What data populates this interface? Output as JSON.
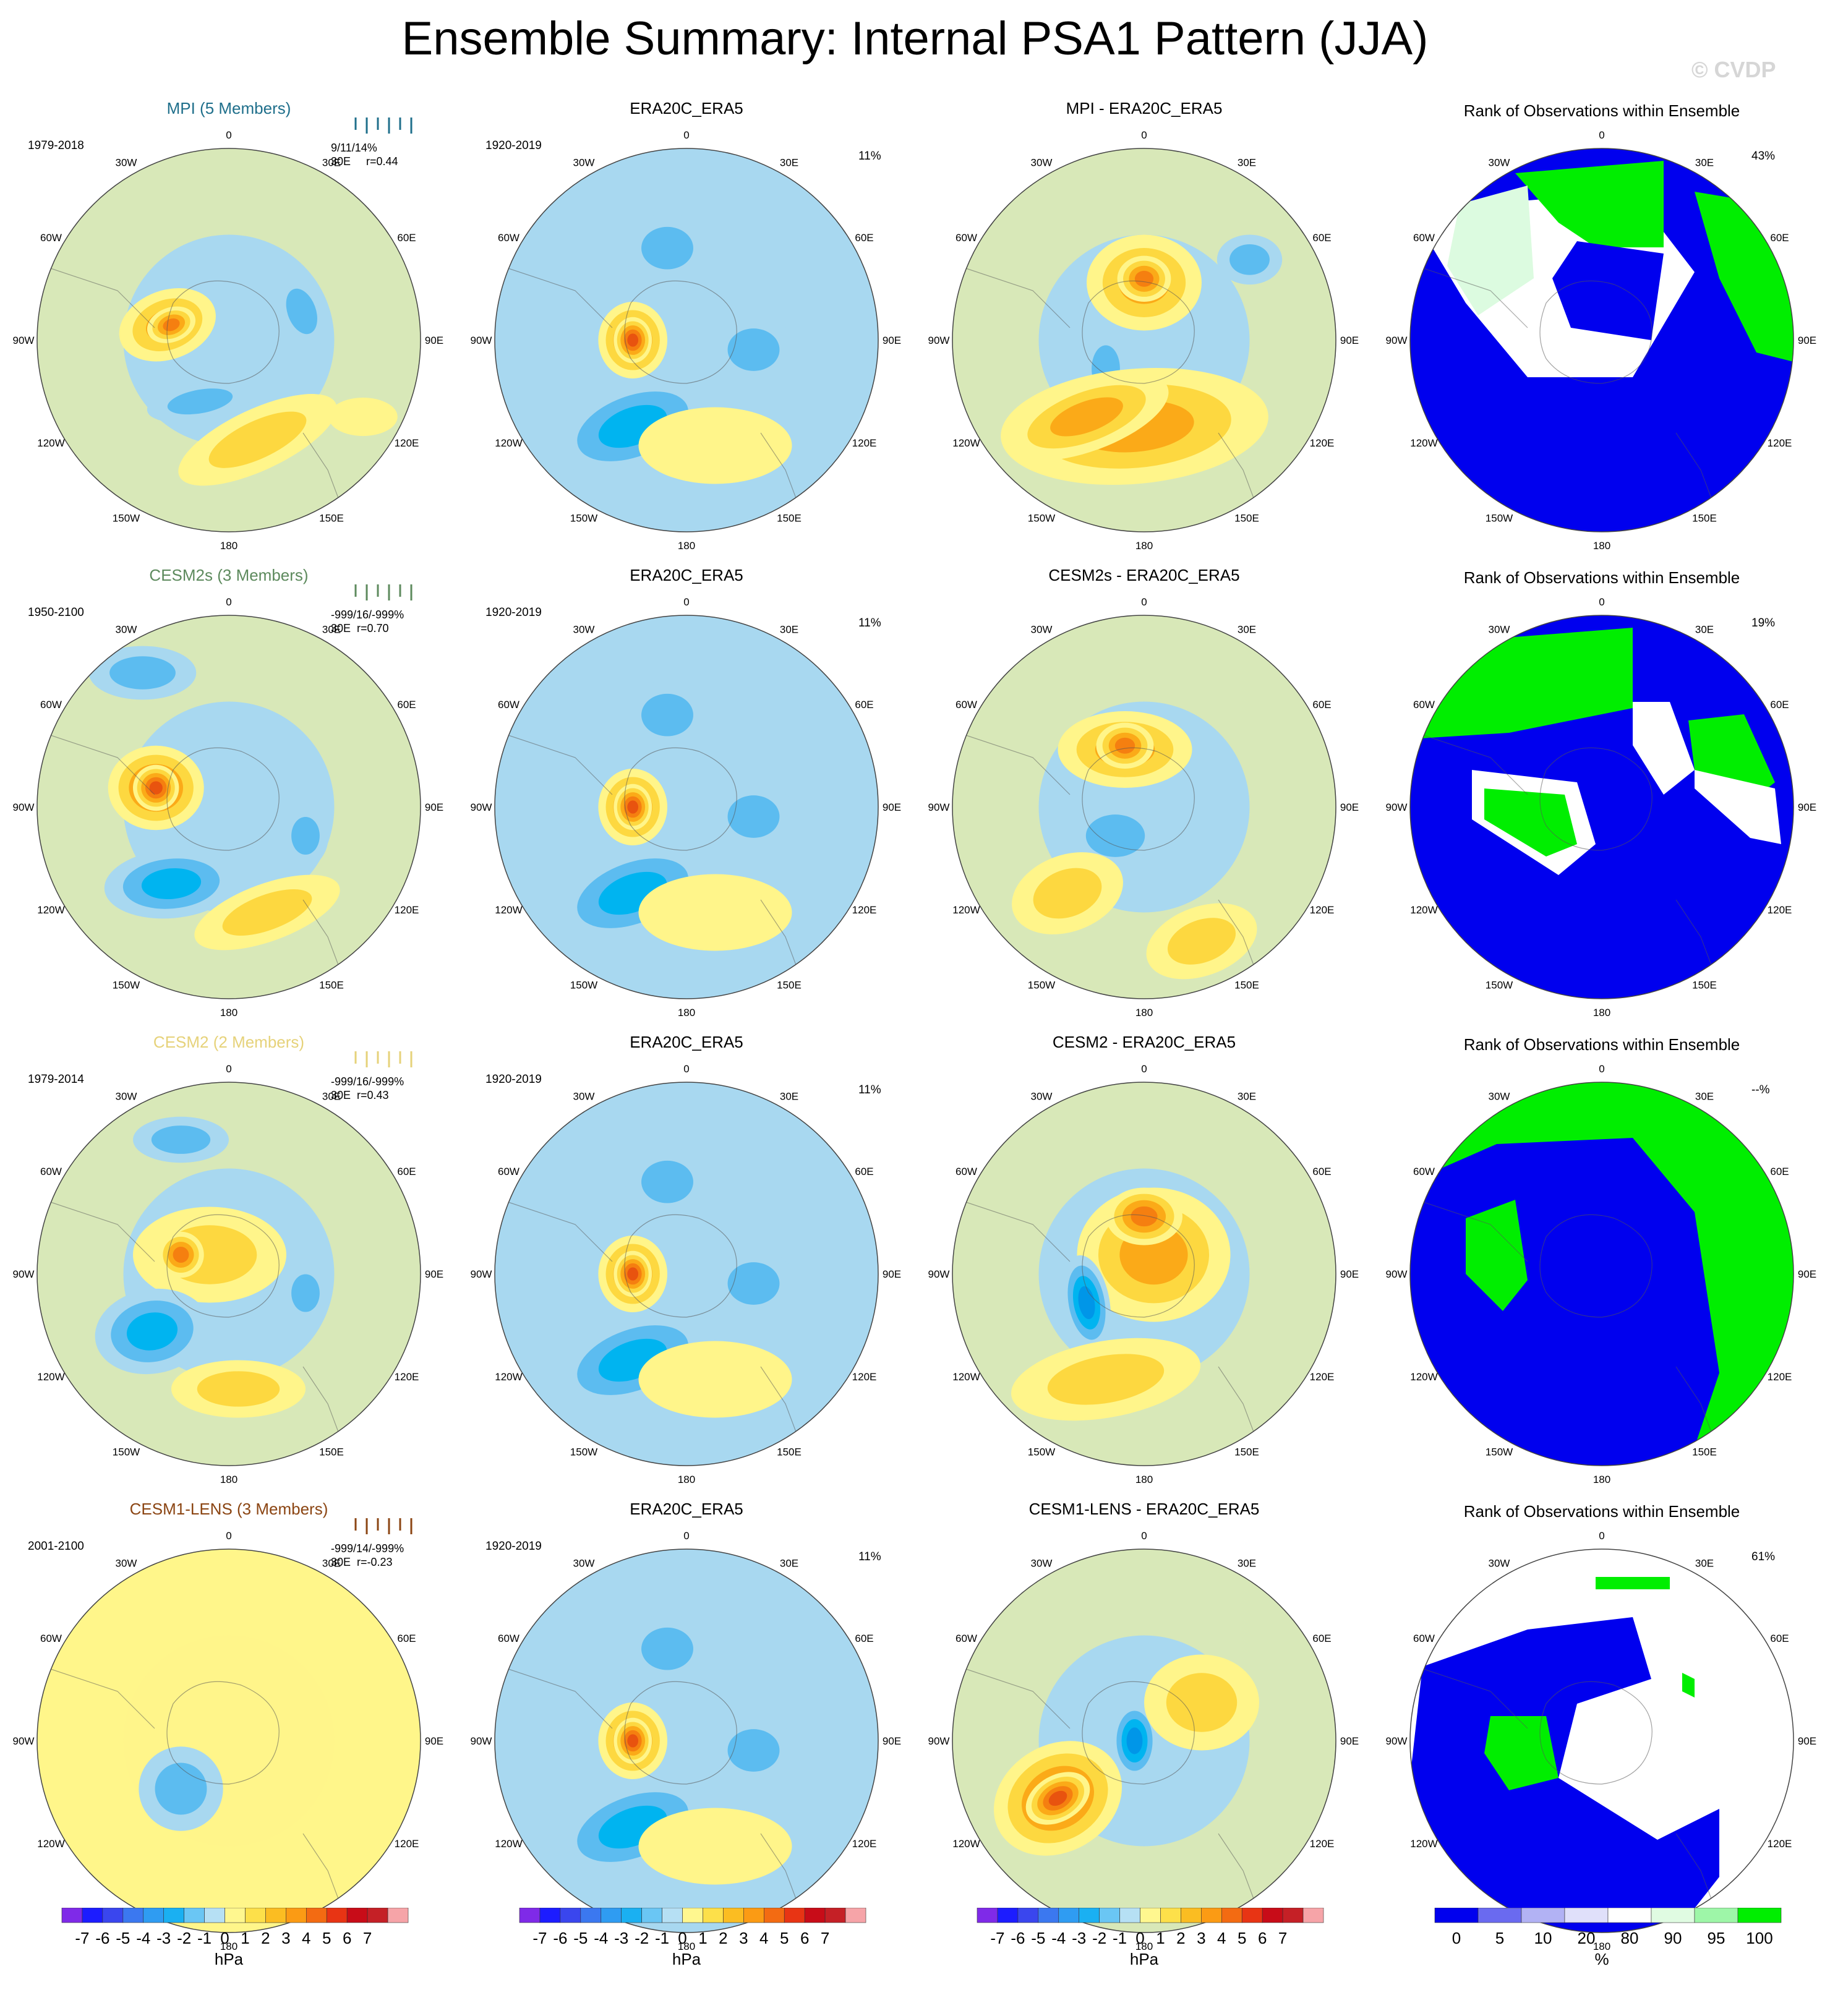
{
  "title": "Ensemble Summary: Internal PSA1 Pattern (JJA)",
  "copyright": "© CVDP",
  "colors": {
    "m3": "#00b4f0",
    "m2": "#5cbcf0",
    "m1": "#a8d8f0",
    "p1": "#fff58a",
    "p2": "#fdd840",
    "p3": "#fbaa18",
    "p4": "#f57f10",
    "rk_blue": "#0000ee",
    "rk_green": "#00ee00",
    "rk_lightgreen": "#dcfbe0",
    "rk_white": "#ffffff"
  },
  "lon_labels": [
    "0",
    "30E",
    "60E",
    "90E",
    "120E",
    "150E",
    "180",
    "150W",
    "120W",
    "90W",
    "60W",
    "30W"
  ],
  "rows": [
    {
      "model": "MPI (5 Members)",
      "model_color": "#1f6f8b",
      "period": "1979-2018",
      "stats": "9/11/14%\n30E     r=0.44",
      "obs_title": "ERA20C_ERA5",
      "obs_period": "1920-2019",
      "obs_pct": "11%",
      "diff_title": "MPI - ERA20C_ERA5",
      "rank_title": "Rank of Observations within Ensemble",
      "rank_pct": "43%"
    },
    {
      "model": "CESM2s (3 Members)",
      "model_color": "#5d8a5d",
      "period": "1950-2100",
      "stats": "-999/16/-999%\n30E  r=0.70",
      "obs_title": "ERA20C_ERA5",
      "obs_period": "1920-2019",
      "obs_pct": "11%",
      "diff_title": "CESM2s - ERA20C_ERA5",
      "rank_title": "Rank of Observations within Ensemble",
      "rank_pct": "19%"
    },
    {
      "model": "CESM2 (2 Members)",
      "model_color": "#e6d27a",
      "period": "1979-2014",
      "stats": "-999/16/-999%\n30E  r=0.43",
      "obs_title": "ERA20C_ERA5",
      "obs_period": "1920-2019",
      "obs_pct": "11%",
      "diff_title": "CESM2 - ERA20C_ERA5",
      "rank_title": "Rank of Observations within Ensemble",
      "rank_pct": "--%"
    },
    {
      "model": "CESM1-LENS (3 Members)",
      "model_color": "#8b4513",
      "period": "2001-2100",
      "stats": "-999/14/-999%\n30E  r=-0.23",
      "obs_title": "ERA20C_ERA5",
      "obs_period": "1920-2019",
      "obs_pct": "11%",
      "diff_title": "CESM1-LENS - ERA20C_ERA5",
      "rank_title": "Rank of Observations within Ensemble",
      "rank_pct": "61%"
    }
  ],
  "colorbar_hpa": {
    "unit": "hPa",
    "labels": [
      "-7",
      "-6",
      "-5",
      "-4",
      "-3",
      "-2",
      "-1",
      "0",
      "1",
      "2",
      "3",
      "4",
      "5",
      "6",
      "7"
    ],
    "colors": [
      "#7f2ae8",
      "#1c1cff",
      "#3a46ee",
      "#3b78f0",
      "#2f9cf2",
      "#1ab0f2",
      "#6ac6f4",
      "#b6e0f4",
      "#fff78f",
      "#fde04a",
      "#fbbd22",
      "#fb9b14",
      "#f36b12",
      "#e83414",
      "#c80c18",
      "#c52026",
      "#f6a4a8"
    ]
  },
  "colorbar_rank": {
    "unit": "%",
    "labels": [
      "0",
      "5",
      "10",
      "20",
      "80",
      "90",
      "95",
      "100"
    ],
    "colors": [
      "#0000ee",
      "#6a6af0",
      "#b2b2f4",
      "#e0e0fa",
      "#ffffff",
      "#e0fbe2",
      "#9ef6a8",
      "#00ee00"
    ]
  },
  "chart_data": [
    {
      "type": "heatmap",
      "panel": "model",
      "row": 0,
      "title": "MPI (5 Members)",
      "period": "1979-2018",
      "unit": "hPa",
      "blobs": [
        [
          -0.32,
          -0.08,
          0.26,
          0.18,
          -20,
          3
        ],
        [
          -0.3,
          -0.08,
          0.13,
          0.09,
          -20,
          4
        ],
        [
          0.38,
          -0.15,
          0.12,
          0.2,
          -20,
          -2
        ],
        [
          -0.15,
          0.32,
          0.28,
          0.1,
          -10,
          -2
        ],
        [
          0.15,
          0.52,
          0.45,
          0.16,
          -25,
          2
        ],
        [
          0.7,
          0.4,
          0.18,
          0.1,
          0,
          1
        ]
      ]
    },
    {
      "type": "heatmap",
      "panel": "obs",
      "row": 0,
      "title": "ERA20C_ERA5",
      "period": "1920-2019",
      "unit": "hPa",
      "pct": "11%",
      "blobs": [
        [
          -0.28,
          0.0,
          0.18,
          0.2,
          0,
          4
        ],
        [
          -0.28,
          0.0,
          0.1,
          0.12,
          0,
          5
        ],
        [
          -0.28,
          0.45,
          0.42,
          0.22,
          -20,
          -3
        ],
        [
          -0.1,
          -0.48,
          0.22,
          0.18,
          0,
          -2
        ],
        [
          0.35,
          0.05,
          0.22,
          0.18,
          0,
          -2
        ],
        [
          0.15,
          0.55,
          0.4,
          0.2,
          0,
          1
        ]
      ]
    },
    {
      "type": "heatmap",
      "panel": "diff",
      "row": 0,
      "title": "MPI - ERA20C_ERA5",
      "unit": "hPa",
      "blobs": [
        [
          0.0,
          -0.3,
          0.3,
          0.25,
          0,
          3
        ],
        [
          0.0,
          -0.32,
          0.14,
          0.12,
          0,
          4
        ],
        [
          0.55,
          -0.42,
          0.17,
          0.13,
          0,
          -2
        ],
        [
          -0.2,
          0.15,
          0.12,
          0.2,
          0,
          -2
        ],
        [
          -0.05,
          0.45,
          0.7,
          0.3,
          -5,
          3
        ],
        [
          -0.3,
          0.4,
          0.45,
          0.18,
          -20,
          3
        ]
      ]
    },
    {
      "type": "heatmap",
      "panel": "model",
      "row": 1,
      "title": "CESM2s (3 Members)",
      "period": "1950-2100",
      "unit": "hPa",
      "blobs": [
        [
          -0.38,
          -0.1,
          0.25,
          0.22,
          0,
          4
        ],
        [
          -0.38,
          -0.1,
          0.12,
          0.12,
          0,
          5
        ],
        [
          -0.45,
          -0.7,
          0.28,
          0.14,
          0,
          -2
        ],
        [
          -0.3,
          0.4,
          0.35,
          0.18,
          -5,
          -3
        ],
        [
          0.4,
          0.15,
          0.12,
          0.16,
          0,
          -2
        ],
        [
          0.2,
          0.55,
          0.4,
          0.15,
          -20,
          2
        ]
      ]
    },
    {
      "type": "heatmap",
      "panel": "obs",
      "row": 1,
      "title": "ERA20C_ERA5",
      "period": "1920-2019",
      "unit": "hPa",
      "pct": "11%",
      "blobs": [
        [
          -0.28,
          0.0,
          0.18,
          0.2,
          0,
          4
        ],
        [
          -0.28,
          0.0,
          0.1,
          0.12,
          0,
          5
        ],
        [
          -0.28,
          0.45,
          0.42,
          0.22,
          -20,
          -3
        ],
        [
          -0.1,
          -0.48,
          0.22,
          0.18,
          0,
          -2
        ],
        [
          0.35,
          0.05,
          0.22,
          0.18,
          0,
          -2
        ],
        [
          0.15,
          0.55,
          0.4,
          0.2,
          0,
          1
        ]
      ]
    },
    {
      "type": "heatmap",
      "panel": "diff",
      "row": 1,
      "title": "CESM2s - ERA20C_ERA5",
      "unit": "hPa",
      "blobs": [
        [
          -0.1,
          -0.3,
          0.35,
          0.2,
          0,
          3
        ],
        [
          -0.1,
          -0.32,
          0.15,
          0.12,
          0,
          4
        ],
        [
          -0.15,
          0.15,
          0.25,
          0.18,
          0,
          -2
        ],
        [
          -0.4,
          0.45,
          0.3,
          0.2,
          -20,
          2
        ],
        [
          0.3,
          0.7,
          0.3,
          0.18,
          -20,
          2
        ]
      ]
    },
    {
      "type": "heatmap",
      "panel": "model",
      "row": 2,
      "title": "CESM2 (2 Members)",
      "period": "1979-2014",
      "unit": "hPa",
      "blobs": [
        [
          -0.1,
          -0.1,
          0.4,
          0.25,
          0,
          2
        ],
        [
          -0.25,
          -0.1,
          0.12,
          0.12,
          0,
          4
        ],
        [
          -0.4,
          0.3,
          0.3,
          0.22,
          -10,
          -3
        ],
        [
          0.4,
          0.1,
          0.12,
          0.16,
          0,
          -2
        ],
        [
          -0.25,
          -0.7,
          0.25,
          0.12,
          0,
          -2
        ],
        [
          0.05,
          0.6,
          0.35,
          0.15,
          0,
          2
        ]
      ]
    },
    {
      "type": "heatmap",
      "panel": "obs",
      "row": 2,
      "title": "ERA20C_ERA5",
      "period": "1920-2019",
      "unit": "hPa",
      "pct": "11%",
      "blobs": [
        [
          -0.28,
          0.0,
          0.18,
          0.2,
          0,
          4
        ],
        [
          -0.28,
          0.0,
          0.1,
          0.12,
          0,
          5
        ],
        [
          -0.28,
          0.45,
          0.42,
          0.22,
          -20,
          -3
        ],
        [
          -0.1,
          -0.48,
          0.22,
          0.18,
          0,
          -2
        ],
        [
          0.35,
          0.05,
          0.22,
          0.18,
          0,
          -2
        ],
        [
          0.15,
          0.55,
          0.4,
          0.2,
          0,
          1
        ]
      ]
    },
    {
      "type": "heatmap",
      "panel": "diff",
      "row": 2,
      "title": "CESM2 - ERA20C_ERA5",
      "unit": "hPa",
      "blobs": [
        [
          0.05,
          -0.1,
          0.4,
          0.35,
          0,
          3
        ],
        [
          0.0,
          -0.3,
          0.2,
          0.15,
          0,
          4
        ],
        [
          -0.3,
          0.15,
          0.12,
          0.25,
          -10,
          -4
        ],
        [
          -0.2,
          0.55,
          0.5,
          0.2,
          -10,
          2
        ]
      ]
    },
    {
      "type": "heatmap",
      "panel": "model",
      "row": 3,
      "title": "CESM1-LENS (3 Members)",
      "period": "2001-2100",
      "unit": "hPa",
      "blobs": [
        [
          -0.25,
          0.25,
          0.22,
          0.22,
          0,
          -2
        ]
      ]
    },
    {
      "type": "heatmap",
      "panel": "obs",
      "row": 3,
      "title": "ERA20C_ERA5",
      "period": "1920-2019",
      "unit": "hPa",
      "pct": "11%",
      "blobs": [
        [
          -0.28,
          0.0,
          0.18,
          0.2,
          0,
          4
        ],
        [
          -0.28,
          0.0,
          0.1,
          0.12,
          0,
          5
        ],
        [
          -0.28,
          0.45,
          0.42,
          0.22,
          -20,
          -3
        ],
        [
          -0.1,
          -0.48,
          0.22,
          0.18,
          0,
          -2
        ],
        [
          0.35,
          0.05,
          0.22,
          0.18,
          0,
          -2
        ],
        [
          0.15,
          0.55,
          0.4,
          0.2,
          0,
          1
        ]
      ]
    },
    {
      "type": "heatmap",
      "panel": "diff",
      "row": 3,
      "title": "CESM1-LENS - ERA20C_ERA5",
      "unit": "hPa",
      "blobs": [
        [
          -0.45,
          0.3,
          0.35,
          0.28,
          -30,
          4
        ],
        [
          -0.45,
          0.3,
          0.18,
          0.12,
          -30,
          5
        ],
        [
          -0.05,
          0.0,
          0.12,
          0.2,
          0,
          -4
        ],
        [
          0.3,
          -0.2,
          0.3,
          0.25,
          0,
          2
        ]
      ]
    },
    {
      "type": "heatmap",
      "panel": "rank",
      "row": 0,
      "title": "Rank of Observations within Ensemble",
      "pct": "43%"
    },
    {
      "type": "heatmap",
      "panel": "rank",
      "row": 1,
      "title": "Rank of Observations within Ensemble",
      "pct": "19%"
    },
    {
      "type": "heatmap",
      "panel": "rank",
      "row": 2,
      "title": "Rank of Observations within Ensemble",
      "pct": "--%"
    },
    {
      "type": "heatmap",
      "panel": "rank",
      "row": 3,
      "title": "Rank of Observations within Ensemble",
      "pct": "61%"
    }
  ]
}
